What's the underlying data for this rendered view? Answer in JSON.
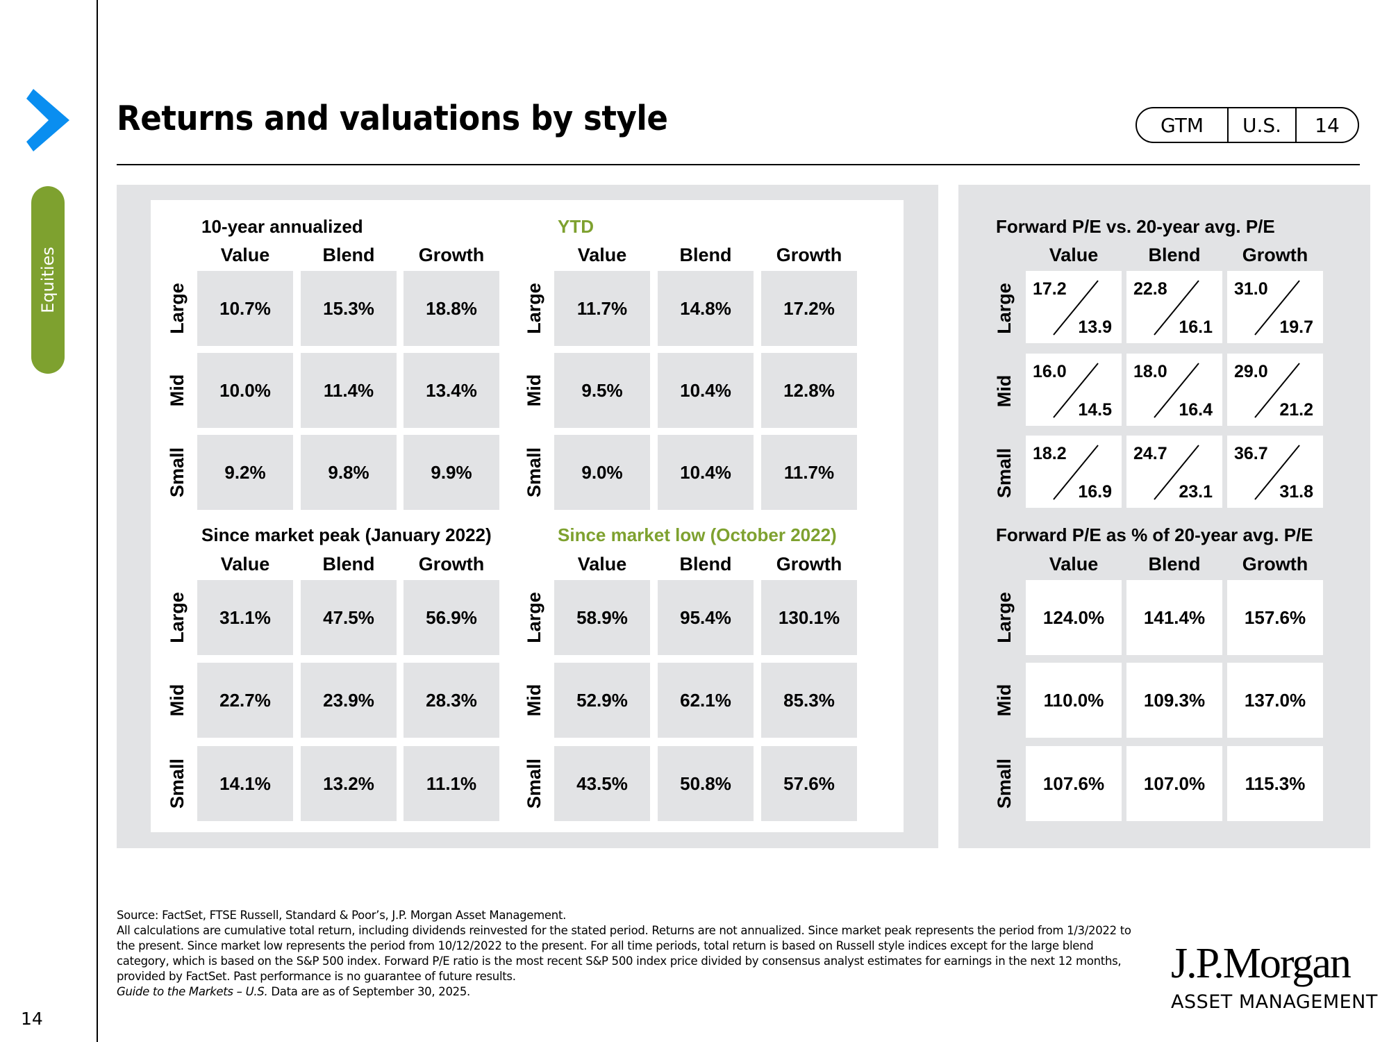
{
  "header": {
    "title": "Returns and valuations by style",
    "badge": [
      "GTM",
      "U.S.",
      "14"
    ]
  },
  "sidebar": {
    "section_tab": "Equities",
    "page_number": "14"
  },
  "colors": {
    "accent_green": "#7ea12f",
    "chevron_blue": "#0a8ef0",
    "cell_gray": "#e2e3e5"
  },
  "columns": [
    "Value",
    "Blend",
    "Growth"
  ],
  "rows": [
    "Large",
    "Mid",
    "Small"
  ],
  "returns": {
    "ten_year": {
      "title": "10-year annualized",
      "values": [
        [
          "10.7%",
          "15.3%",
          "18.8%"
        ],
        [
          "10.0%",
          "11.4%",
          "13.4%"
        ],
        [
          "9.2%",
          "9.8%",
          "9.9%"
        ]
      ]
    },
    "ytd": {
      "title": "YTD",
      "values": [
        [
          "11.7%",
          "14.8%",
          "17.2%"
        ],
        [
          "9.5%",
          "10.4%",
          "12.8%"
        ],
        [
          "9.0%",
          "10.4%",
          "11.7%"
        ]
      ]
    },
    "since_peak": {
      "title": "Since market peak (January 2022)",
      "values": [
        [
          "31.1%",
          "47.5%",
          "56.9%"
        ],
        [
          "22.7%",
          "23.9%",
          "28.3%"
        ],
        [
          "14.1%",
          "13.2%",
          "11.1%"
        ]
      ]
    },
    "since_low": {
      "title": "Since market low (October 2022)",
      "values": [
        [
          "58.9%",
          "95.4%",
          "130.1%"
        ],
        [
          "52.9%",
          "62.1%",
          "85.3%"
        ],
        [
          "43.5%",
          "50.8%",
          "57.6%"
        ]
      ]
    }
  },
  "valuations": {
    "pe_vs_avg": {
      "title": "Forward P/E vs. 20-year avg. P/E",
      "values": [
        [
          {
            "current": "17.2",
            "avg": "13.9"
          },
          {
            "current": "22.8",
            "avg": "16.1"
          },
          {
            "current": "31.0",
            "avg": "19.7"
          }
        ],
        [
          {
            "current": "16.0",
            "avg": "14.5"
          },
          {
            "current": "18.0",
            "avg": "16.4"
          },
          {
            "current": "29.0",
            "avg": "21.2"
          }
        ],
        [
          {
            "current": "18.2",
            "avg": "16.9"
          },
          {
            "current": "24.7",
            "avg": "23.1"
          },
          {
            "current": "36.7",
            "avg": "31.8"
          }
        ]
      ]
    },
    "pe_pct_avg": {
      "title": "Forward P/E as % of 20-year avg. P/E",
      "values": [
        [
          "124.0%",
          "141.4%",
          "157.6%"
        ],
        [
          "110.0%",
          "109.3%",
          "137.0%"
        ],
        [
          "107.6%",
          "107.0%",
          "115.3%"
        ]
      ]
    }
  },
  "footer": {
    "source": "Source: FactSet, FTSE Russell, Standard & Poor’s, J.P. Morgan Asset Management.",
    "notes": "All calculations are cumulative total return, including dividends reinvested for the stated period. Returns are not annualized. Since market peak represents the period from 1/3/2022 to the present. Since market low represents the period from 10/12/2022 to the present. For all time periods, total return is based on Russell style indices except for the large blend category, which is based on the S&P 500 index. Forward P/E ratio is the most recent S&P 500 index price divided by consensus analyst estimates for earnings in the next 12 months, provided by FactSet. Past performance is no guarantee of future results.",
    "guide_italic": "Guide to the Markets – U.S.",
    "as_of": " Data are as of September 30, 2025."
  },
  "logo": {
    "brand": "J.P.Morgan",
    "sub": "ASSET MANAGEMENT"
  }
}
